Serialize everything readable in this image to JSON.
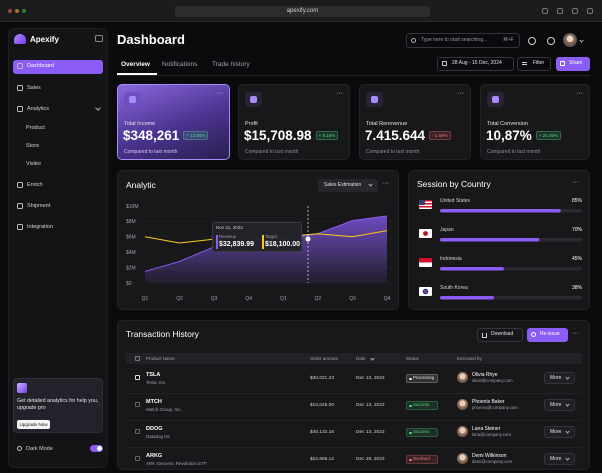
{
  "browser": {
    "url": "apexify.com"
  },
  "sidebar": {
    "brand": "Apexify",
    "nav": [
      "Dashboard",
      "Sales",
      "Analytics",
      "Product",
      "Store",
      "Visitor",
      "Enrich",
      "Shipment",
      "Integration"
    ],
    "promo": {
      "text": "Get detailed analytics for help you, upgrade pro",
      "button": "Upgrade Now"
    },
    "dark_mode": "Dark Mode"
  },
  "header": {
    "title": "Dashboard",
    "search_placeholder": "Type here to start searching...",
    "shortcut": "⌘+F",
    "tabs": [
      "Overview",
      "Notifications",
      "Trade history"
    ],
    "date_range": "28 Aug - 15 Dec, 2024",
    "filter": "Filter",
    "share": "Share"
  },
  "kpis": [
    {
      "label": "Total Income",
      "value": "$348,261",
      "change": "+ 12.55%",
      "change_color": "#4ade80",
      "note": "Compared to last month"
    },
    {
      "label": "Profit",
      "value": "$15,708.98",
      "change": "+ 8.18%",
      "change_color": "#4ade80",
      "note": "Compared to last month"
    },
    {
      "label": "Total Renovenue",
      "value": "7.415.644",
      "change": "- 1.58%",
      "change_color": "#f87171",
      "note": "Compared to last month"
    },
    {
      "label": "Total Conversion",
      "value": "10,87%",
      "change": "+ 20.45%",
      "change_color": "#4ade80",
      "note": "Compared to last month"
    }
  ],
  "analytic": {
    "title": "Analytic",
    "selector": "Sales Estimation",
    "tooltip": {
      "date": "Nov 21, 2023",
      "revenue": "$32,839.99",
      "target": "$18,100.00"
    },
    "chart_data": {
      "type": "area",
      "categories": [
        "Q1",
        "Q2",
        "Q3",
        "Q4",
        "Q1",
        "Q2",
        "Q3",
        "Q4"
      ],
      "series": [
        {
          "name": "Revenue",
          "color": "#8b5cf6",
          "values": [
            1.5,
            2.8,
            4.7,
            6.0,
            5.7,
            6.4,
            8.1,
            8.7
          ]
        },
        {
          "name": "Target",
          "color": "#facc15",
          "values": [
            6.0,
            5.2,
            5.7,
            5.0,
            6.0,
            6.4,
            6.0,
            6.8
          ]
        }
      ],
      "ylim": [
        0,
        10
      ],
      "yticks": [
        {
          "value": 0,
          "label": "$0"
        },
        {
          "value": 2,
          "label": "$2M"
        },
        {
          "value": 4,
          "label": "$4M"
        },
        {
          "value": 6,
          "label": "$6M"
        },
        {
          "value": 8,
          "label": "$8M"
        },
        {
          "value": 10,
          "label": "$10M"
        }
      ],
      "grid": true
    }
  },
  "country": {
    "title": "Session by Country",
    "chart_data": {
      "type": "bar",
      "categories": [
        "United States",
        "Japan",
        "Indonesia",
        "South Korea"
      ],
      "values": [
        85,
        70,
        45,
        38
      ],
      "value_labels": [
        "85%",
        "70%",
        "45%",
        "38%"
      ],
      "color": "#8b5cf6",
      "xlim": [
        0,
        100
      ]
    }
  },
  "transactions": {
    "title": "Transaction History",
    "download": "Download",
    "reissue": "Re-issue",
    "columns": [
      "Product Name",
      "Order amount",
      "Date",
      "Status",
      "Executed by"
    ],
    "rows": [
      {
        "ticker": "TSLA",
        "company": "Tesla, Inc.",
        "amount": "$30,021.23",
        "date": "Dec 13, 2023",
        "status": "Processing",
        "status_color": "#e5e5e5",
        "name": "Olivia Rhye",
        "email": "olivia@company.com",
        "action": "More"
      },
      {
        "ticker": "MTCH",
        "company": "Match Group, Inc.",
        "amount": "$10,045.00",
        "date": "Dec 13, 2023",
        "status": "Success",
        "status_color": "#4ade80",
        "name": "Phoenix Baker",
        "email": "phoenix@company.com",
        "action": "More"
      },
      {
        "ticker": "DDOG",
        "company": "Datadog Inc",
        "amount": "$40,132.16",
        "date": "Dec 13, 2023",
        "status": "Success",
        "status_color": "#4ade80",
        "name": "Lana Steiner",
        "email": "lana@company.com",
        "action": "More"
      },
      {
        "ticker": "ARKG",
        "company": "ARK Genomic Revolution ETF",
        "amount": "$22,665.12",
        "date": "Dec 28, 2023",
        "status": "Declined",
        "status_color": "#f87171",
        "name": "Demi Wilkinson",
        "email": "demi@company.com",
        "action": "More"
      }
    ]
  }
}
